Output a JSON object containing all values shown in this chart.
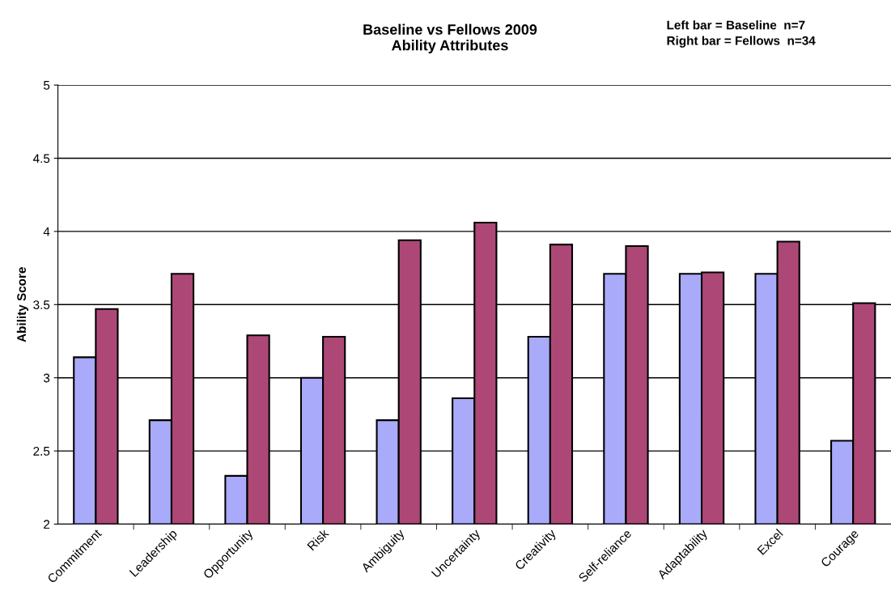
{
  "chart_data": {
    "type": "bar",
    "title": "Baseline vs Fellows 2009\nAbility Attributes",
    "ylabel": "Ability Score",
    "annotations": [
      "Left bar = Baseline  n=7\nRight bar = Fellows  n=34"
    ],
    "categories": [
      "Commitment",
      "Leadership",
      "Opportunity",
      "Risk",
      "Ambiguity",
      "Uncertainty",
      "Creativity",
      "Self-reliance",
      "Adaptability",
      "Excel",
      "Courage"
    ],
    "series": [
      {
        "color": "#aaaafa",
        "values": [
          3.14,
          2.71,
          2.33,
          3.0,
          2.71,
          2.86,
          3.28,
          3.71,
          3.71,
          3.71,
          2.57
        ]
      },
      {
        "color": "#ad4876",
        "values": [
          3.47,
          3.71,
          3.29,
          3.28,
          3.94,
          4.06,
          3.91,
          3.9,
          3.72,
          3.93,
          3.51
        ]
      }
    ],
    "ylim": [
      2,
      5
    ],
    "yticks": [
      2,
      2.5,
      3,
      3.5,
      4,
      4.5,
      5
    ],
    "grid": "y",
    "legend": false
  }
}
